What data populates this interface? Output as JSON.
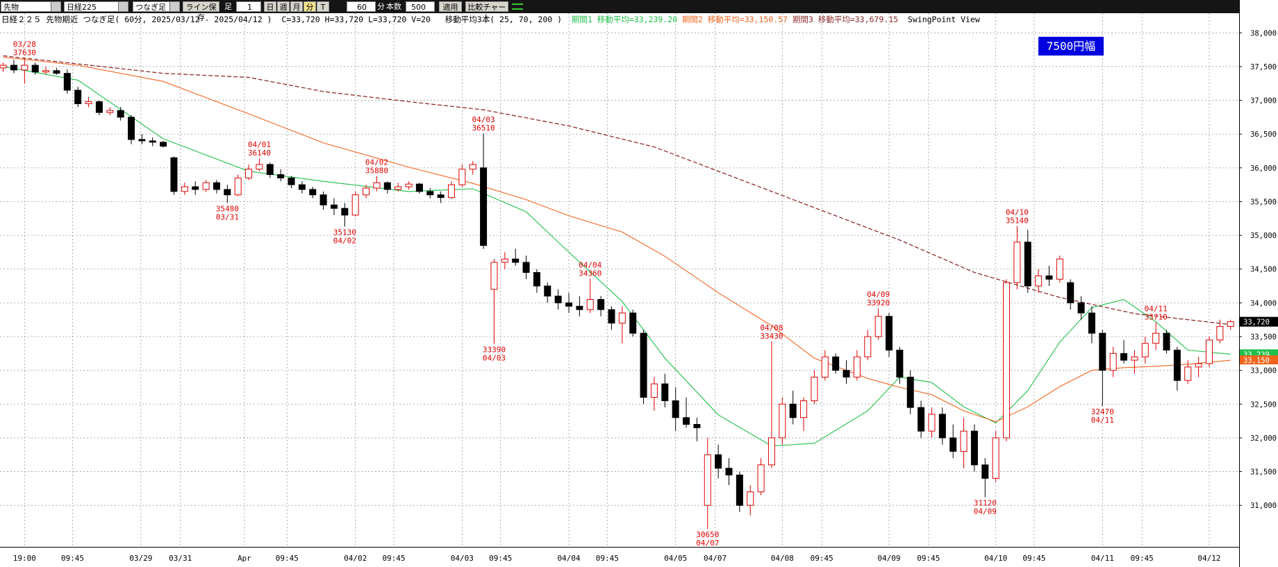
{
  "toolbar": {
    "market": "先物",
    "symbol": "日経225",
    "chart_kind": "つなぎ足",
    "save_button": "ライン保存",
    "bar_label": "足",
    "bar_count_input": "1",
    "period_buttons": [
      "日",
      "週",
      "月",
      "分",
      "T"
    ],
    "minutes_input": "60",
    "minutes_unit": "分",
    "count_label": "本数",
    "count_input": "500",
    "apply_button": "適用",
    "compare_button": "比較チャート"
  },
  "header": {
    "title": "日経２２５ 先物期近 つなぎ足( 60分, 2025/03/12 - 2025/04/12 )",
    "quote": "C=33,720 H=33,720 L=33,720 V=20",
    "ma_spec": "移動平均3本( 25, 70, 200 )",
    "view": "SwingPoint View"
  },
  "chart_data": {
    "type": "candlestick",
    "range_badge": "7500円幅",
    "grid": true,
    "ylim": [
      30385,
      38250
    ],
    "xlim": [
      -0.3,
      115.8
    ],
    "yticks": [
      {
        "value": 31000,
        "label": "31,000"
      },
      {
        "value": 31500,
        "label": "31,500"
      },
      {
        "value": 32000,
        "label": "32,000"
      },
      {
        "value": 32500,
        "label": "32,500"
      },
      {
        "value": 33000,
        "label": "33,000"
      },
      {
        "value": 33500,
        "label": "33,500"
      },
      {
        "value": 34000,
        "label": "34,000"
      },
      {
        "value": 34500,
        "label": "34,500"
      },
      {
        "value": 35000,
        "label": "35,000"
      },
      {
        "value": 35500,
        "label": "35,500"
      },
      {
        "value": 36000,
        "label": "36,000"
      },
      {
        "value": 36500,
        "label": "36,500"
      },
      {
        "value": 37000,
        "label": "37,000"
      },
      {
        "value": 37500,
        "label": "37,500"
      },
      {
        "value": 38000,
        "label": "38,000"
      }
    ],
    "xticks": [
      {
        "value": 2,
        "label": "19:00"
      },
      {
        "value": 6.5,
        "label": "09:45"
      },
      {
        "value": 12.9,
        "label": "03/29"
      },
      {
        "value": 16.6,
        "label": "03/31"
      },
      {
        "value": 22.6,
        "label": "Apr"
      },
      {
        "value": 26.6,
        "label": "09:45"
      },
      {
        "value": 33,
        "label": "04/02"
      },
      {
        "value": 36.6,
        "label": "09:45"
      },
      {
        "value": 43,
        "label": "04/03"
      },
      {
        "value": 46.6,
        "label": "09:45"
      },
      {
        "value": 53,
        "label": "04/04"
      },
      {
        "value": 56.6,
        "label": "09:45"
      },
      {
        "value": 63,
        "label": "04/05"
      },
      {
        "value": 66.7,
        "label": "04/07"
      },
      {
        "value": 73,
        "label": "04/08"
      },
      {
        "value": 76.7,
        "label": "09:45"
      },
      {
        "value": 83,
        "label": "04/09"
      },
      {
        "value": 86.7,
        "label": "09:45"
      },
      {
        "value": 93,
        "label": "04/10"
      },
      {
        "value": 96.6,
        "label": "09:45"
      },
      {
        "value": 103,
        "label": "04/11"
      },
      {
        "value": 106.7,
        "label": "09:45"
      },
      {
        "value": 113,
        "label": "04/12"
      }
    ],
    "candles": {
      "up_color": "#e00000",
      "down_color": "#000000",
      "ohlc": [
        [
          37480,
          37560,
          37420,
          37520
        ],
        [
          37520,
          37600,
          37400,
          37450
        ],
        [
          37450,
          37630,
          37250,
          37520
        ],
        [
          37520,
          37560,
          37380,
          37420
        ],
        [
          37420,
          37500,
          37380,
          37440
        ],
        [
          37440,
          37480,
          37380,
          37400
        ],
        [
          37400,
          37460,
          37100,
          37150
        ],
        [
          37150,
          37200,
          36900,
          36950
        ],
        [
          36950,
          37050,
          36900,
          36980
        ],
        [
          36980,
          37000,
          36780,
          36820
        ],
        [
          36820,
          36900,
          36780,
          36850
        ],
        [
          36850,
          36900,
          36700,
          36750
        ],
        [
          36750,
          36780,
          36350,
          36420
        ],
        [
          36420,
          36500,
          36350,
          36400
        ],
        [
          36400,
          36450,
          36320,
          36380
        ],
        [
          36380,
          36400,
          36300,
          36320
        ],
        [
          36150,
          36170,
          35600,
          35650
        ],
        [
          35650,
          35780,
          35600,
          35720
        ],
        [
          35720,
          35800,
          35600,
          35680
        ],
        [
          35680,
          35820,
          35640,
          35780
        ],
        [
          35780,
          35820,
          35620,
          35680
        ],
        [
          35680,
          35750,
          35480,
          35600
        ],
        [
          35600,
          35900,
          35580,
          35850
        ],
        [
          35850,
          36050,
          35820,
          35980
        ],
        [
          35980,
          36140,
          35950,
          36050
        ],
        [
          36050,
          36080,
          35850,
          35900
        ],
        [
          35900,
          35980,
          35800,
          35850
        ],
        [
          35850,
          35880,
          35700,
          35750
        ],
        [
          35750,
          35800,
          35620,
          35680
        ],
        [
          35680,
          35720,
          35550,
          35600
        ],
        [
          35600,
          35650,
          35380,
          35450
        ],
        [
          35450,
          35550,
          35300,
          35400
        ],
        [
          35400,
          35480,
          35130,
          35300
        ],
        [
          35300,
          35650,
          35280,
          35600
        ],
        [
          35600,
          35750,
          35550,
          35700
        ],
        [
          35700,
          35880,
          35650,
          35780
        ],
        [
          35780,
          35800,
          35620,
          35680
        ],
        [
          35680,
          35780,
          35650,
          35720
        ],
        [
          35720,
          35800,
          35680,
          35760
        ],
        [
          35760,
          35780,
          35620,
          35650
        ],
        [
          35650,
          35700,
          35550,
          35600
        ],
        [
          35600,
          35650,
          35480,
          35560
        ],
        [
          35560,
          35800,
          35540,
          35750
        ],
        [
          35750,
          36050,
          35720,
          35980
        ],
        [
          35980,
          36100,
          35900,
          36050
        ],
        [
          36000,
          36510,
          34800,
          34850
        ],
        [
          34200,
          34650,
          33390,
          34600
        ],
        [
          34600,
          34750,
          34500,
          34650
        ],
        [
          34650,
          34800,
          34550,
          34600
        ],
        [
          34600,
          34700,
          34350,
          34450
        ],
        [
          34450,
          34500,
          34150,
          34250
        ],
        [
          34250,
          34300,
          34000,
          34100
        ],
        [
          34100,
          34200,
          33900,
          34000
        ],
        [
          34000,
          34150,
          33850,
          33950
        ],
        [
          33950,
          34100,
          33800,
          33900
        ],
        [
          33900,
          34360,
          33850,
          34050
        ],
        [
          34050,
          34100,
          33800,
          33900
        ],
        [
          33900,
          33950,
          33600,
          33700
        ],
        [
          33700,
          33950,
          33400,
          33850
        ],
        [
          33850,
          33900,
          33500,
          33550
        ],
        [
          33550,
          33600,
          32500,
          32600
        ],
        [
          32600,
          32900,
          32400,
          32800
        ],
        [
          32800,
          32950,
          32450,
          32550
        ],
        [
          32550,
          32750,
          32100,
          32300
        ],
        [
          32300,
          32600,
          32150,
          32200
        ],
        [
          32200,
          32300,
          31950,
          32150
        ],
        [
          31000,
          32000,
          30650,
          31750
        ],
        [
          31750,
          31900,
          31400,
          31550
        ],
        [
          31550,
          31700,
          31300,
          31450
        ],
        [
          31450,
          31500,
          30900,
          31000
        ],
        [
          31000,
          31300,
          30850,
          31200
        ],
        [
          31200,
          31700,
          31150,
          31600
        ],
        [
          31600,
          33430,
          31550,
          32000
        ],
        [
          32000,
          32600,
          31900,
          32500
        ],
        [
          32500,
          32700,
          32200,
          32300
        ],
        [
          32300,
          32600,
          32100,
          32550
        ],
        [
          32550,
          33000,
          32500,
          32900
        ],
        [
          32900,
          33300,
          32850,
          33200
        ],
        [
          33200,
          33250,
          32950,
          33000
        ],
        [
          33000,
          33150,
          32800,
          32900
        ],
        [
          32900,
          33300,
          32850,
          33200
        ],
        [
          33200,
          33600,
          33150,
          33500
        ],
        [
          33500,
          33920,
          33450,
          33800
        ],
        [
          33800,
          33850,
          33200,
          33300
        ],
        [
          33300,
          33350,
          32800,
          32900
        ],
        [
          32900,
          33000,
          32350,
          32450
        ],
        [
          32450,
          32550,
          32000,
          32100
        ],
        [
          32100,
          32450,
          32000,
          32350
        ],
        [
          32350,
          32450,
          31900,
          32000
        ],
        [
          32000,
          32200,
          31700,
          31800
        ],
        [
          31800,
          32300,
          31550,
          32100
        ],
        [
          32100,
          32200,
          31500,
          31600
        ],
        [
          31600,
          31700,
          31120,
          31400
        ],
        [
          31400,
          32100,
          31350,
          32000
        ],
        [
          32000,
          34350,
          31950,
          34300
        ],
        [
          34300,
          35140,
          34200,
          34900
        ],
        [
          34900,
          35080,
          34150,
          34250
        ],
        [
          34250,
          34500,
          34150,
          34400
        ],
        [
          34400,
          34550,
          34250,
          34350
        ],
        [
          34350,
          34700,
          34300,
          34650
        ],
        [
          34300,
          34350,
          33900,
          34000
        ],
        [
          34000,
          34100,
          33750,
          33850
        ],
        [
          33850,
          33950,
          33400,
          33550
        ],
        [
          33550,
          33600,
          32470,
          33000
        ],
        [
          33000,
          33350,
          32900,
          33250
        ],
        [
          33250,
          33450,
          33100,
          33150
        ],
        [
          33150,
          33300,
          32950,
          33200
        ],
        [
          33200,
          33500,
          33100,
          33400
        ],
        [
          33400,
          33710,
          33300,
          33550
        ],
        [
          33550,
          33600,
          33250,
          33300
        ],
        [
          33300,
          33350,
          32700,
          32850
        ],
        [
          32850,
          33150,
          32800,
          33050
        ],
        [
          33050,
          33200,
          32900,
          33100
        ],
        [
          33100,
          33500,
          33050,
          33450
        ],
        [
          33450,
          33750,
          33400,
          33650
        ],
        [
          33650,
          33750,
          33600,
          33720
        ]
      ]
    },
    "last_price": {
      "value": 33720,
      "label": "33,720"
    },
    "series": [
      {
        "name": "期間1 移動平均=33,239.20",
        "color": "#1fbf4a",
        "dash": false,
        "box": {
          "value": 33239,
          "label": "33,239"
        },
        "x": [
          0,
          7,
          15,
          23,
          30,
          38,
          44,
          49,
          53,
          58,
          62,
          67,
          72,
          76,
          81,
          84,
          87,
          90,
          93,
          96,
          99,
          102,
          105,
          108,
          111,
          115
        ],
        "values": [
          37500,
          37300,
          36430,
          35950,
          35800,
          35650,
          35690,
          35350,
          34750,
          34020,
          33180,
          32340,
          31880,
          31920,
          32400,
          32900,
          32820,
          32460,
          32220,
          32700,
          33420,
          33930,
          34050,
          33720,
          33300,
          33239
        ]
      },
      {
        "name": "期間2 移動平均=33,150.57",
        "color": "#f0651e",
        "dash": false,
        "box": {
          "value": 33150,
          "label": "33,150"
        },
        "x": [
          0,
          7,
          15,
          23,
          30,
          38,
          44,
          49,
          53,
          58,
          62,
          67,
          72,
          76,
          81,
          84,
          87,
          90,
          93,
          96,
          99,
          102,
          105,
          108,
          111,
          115
        ],
        "values": [
          37640,
          37520,
          37280,
          36800,
          36370,
          36010,
          35770,
          35530,
          35290,
          35050,
          34690,
          34150,
          33660,
          33180,
          32880,
          32750,
          32640,
          32400,
          32240,
          32460,
          32760,
          33000,
          33040,
          33060,
          33090,
          33150
        ]
      },
      {
        "name": "期間3 移動平均=33,679.15",
        "color": "#8e2b2b",
        "dash": true,
        "x": [
          0,
          7,
          15,
          23,
          30,
          38,
          45,
          53,
          61,
          68,
          76,
          84,
          91,
          99,
          106,
          115
        ],
        "values": [
          37660,
          37540,
          37400,
          37340,
          37130,
          36980,
          36860,
          36620,
          36310,
          35890,
          35410,
          34930,
          34450,
          34080,
          33840,
          33679
        ]
      }
    ],
    "swing_points": [
      {
        "x": 2,
        "side": "high",
        "date": "03/28",
        "price": 37630
      },
      {
        "x": 21,
        "side": "low",
        "date": "03/31",
        "price": 35480
      },
      {
        "x": 24,
        "side": "high",
        "date": "04/01",
        "price": 36140
      },
      {
        "x": 32,
        "side": "low",
        "date": "04/02",
        "price": 35130
      },
      {
        "x": 35,
        "side": "high",
        "date": "04/02",
        "price": 35880
      },
      {
        "x": 45,
        "side": "high",
        "date": "04/03",
        "price": 36510
      },
      {
        "x": 46,
        "side": "low",
        "date": "04/03",
        "price": 33390
      },
      {
        "x": 55,
        "side": "high",
        "date": "04/04",
        "price": 34360
      },
      {
        "x": 66,
        "side": "low",
        "date": "04/07",
        "price": 30650
      },
      {
        "x": 72,
        "side": "high",
        "date": "04/08",
        "price": 33430
      },
      {
        "x": 82,
        "side": "high",
        "date": "04/09",
        "price": 33920
      },
      {
        "x": 92,
        "side": "low",
        "date": "04/09",
        "price": 31120
      },
      {
        "x": 95,
        "side": "high",
        "date": "04/10",
        "price": 35140
      },
      {
        "x": 103,
        "side": "low",
        "date": "04/11",
        "price": 32470
      },
      {
        "x": 108,
        "side": "high",
        "date": "04/11",
        "price": 33710
      }
    ]
  }
}
